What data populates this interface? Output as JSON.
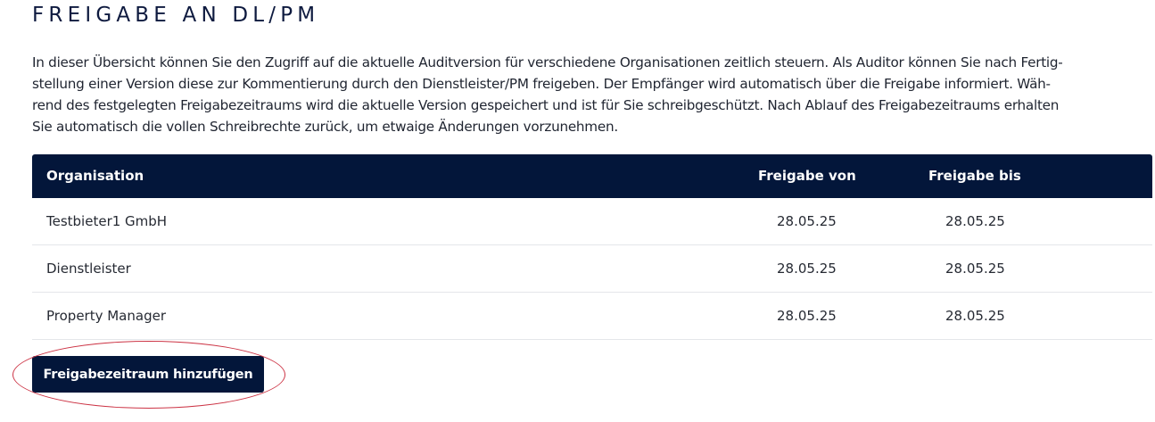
{
  "page": {
    "title": "FREIGABE AN DL/PM",
    "intro_lines": [
      "In dieser Übersicht können Sie den Zugriff auf die aktuelle Auditversion für verschiedene Organisationen zeitlich steuern. Als Auditor können Sie nach Fertig-",
      "stellung einer Version diese zur Kommentierung durch den Dienstleister/PM freigeben. Der Empfänger wird automatisch über die Freigabe informiert. Wäh-",
      "rend des festgelegten Freigabezeitraums wird die aktuelle Version gespeichert und ist für Sie schreibgeschützt. Nach Ablauf des Freigabezeitraums erhalten",
      "Sie automatisch die vollen Schreibrechte zurück, um etwaige Änderungen vorzunehmen."
    ]
  },
  "table": {
    "headers": {
      "organisation": "Organisation",
      "from": "Freigabe von",
      "to": "Freigabe bis"
    },
    "rows": [
      {
        "organisation": "Testbieter1 GmbH",
        "from": "28.05.25",
        "to": "28.05.25"
      },
      {
        "organisation": "Dienstleister",
        "from": "28.05.25",
        "to": "28.05.25"
      },
      {
        "organisation": "Property Manager",
        "from": "28.05.25",
        "to": "28.05.25"
      }
    ]
  },
  "actions": {
    "add_label": "Freigabezeitraum hinzufügen"
  },
  "colors": {
    "header_bg": "#03163a",
    "button_bg": "#03163a",
    "highlight": "#cc3344"
  }
}
